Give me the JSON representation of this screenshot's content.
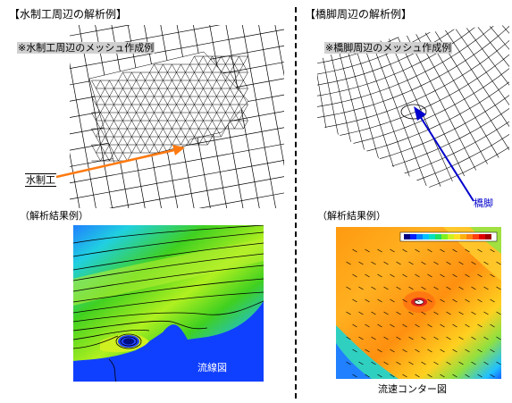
{
  "left": {
    "section_title": "【水制工周辺の解析例】",
    "mesh_caption": "※水制工周辺のメッシュ作成例",
    "pointer_label": "水制工",
    "result_heading": "（解析結果例）",
    "plot_label": "流線図"
  },
  "right": {
    "section_title": "【橋脚周辺の解析例】",
    "mesh_caption": "※橋脚周辺のメッシュ作成例",
    "pointer_label": "橋脚",
    "result_heading": "（解析結果例）",
    "plot_label": "流速コンター図"
  },
  "colors": {
    "orange_arrow": "#ff7a10",
    "blue_arrow": "#0000cc",
    "flow_blue": "#1040ff",
    "flow_green": "#30c010",
    "contour_orange": "#ff9a10"
  }
}
